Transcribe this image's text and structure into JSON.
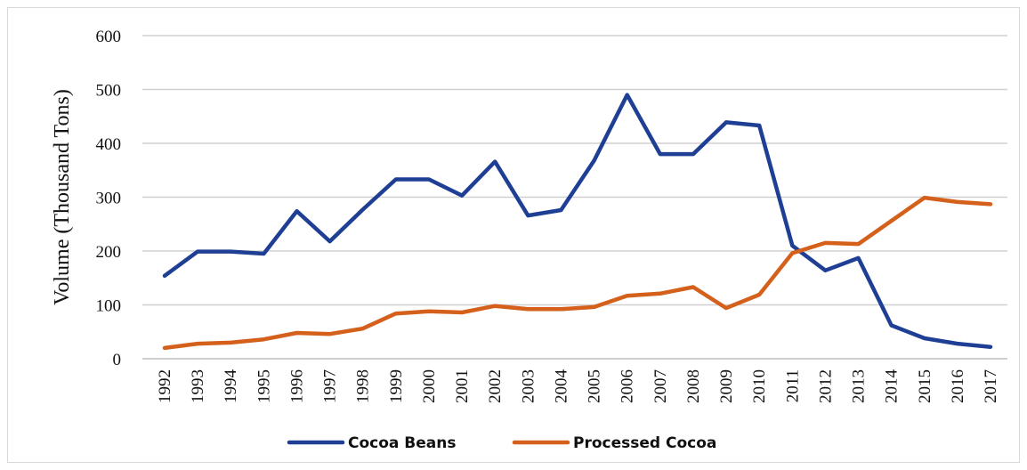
{
  "chart_data": {
    "type": "line",
    "title": "",
    "xlabel": "",
    "ylabel": "Volume (Thousand Tons)",
    "ylim": [
      0,
      600
    ],
    "yticks": [
      0,
      100,
      200,
      300,
      400,
      500,
      600
    ],
    "grid": "horizontal",
    "legend_position": "bottom",
    "categories": [
      "1992",
      "1993",
      "1994",
      "1995",
      "1996",
      "1997",
      "1998",
      "1999",
      "2000",
      "2001",
      "2002",
      "2003",
      "2004",
      "2005",
      "2006",
      "2007",
      "2008",
      "2009",
      "2010",
      "2011",
      "2012",
      "2013",
      "2014",
      "2015",
      "2016",
      "2017"
    ],
    "series": [
      {
        "name": "Cocoa Beans",
        "color": "#1f3f94",
        "values": [
          154,
          199,
          199,
          195,
          274,
          218,
          277,
          333,
          333,
          303,
          366,
          266,
          276,
          368,
          490,
          380,
          380,
          439,
          433,
          210,
          164,
          187,
          62,
          38,
          28,
          22
        ]
      },
      {
        "name": "Processed Cocoa",
        "color": "#d4601b",
        "values": [
          20,
          28,
          30,
          36,
          48,
          46,
          56,
          84,
          88,
          86,
          98,
          92,
          92,
          96,
          117,
          121,
          133,
          94,
          119,
          196,
          215,
          213,
          256,
          299,
          291,
          287
        ]
      }
    ]
  }
}
